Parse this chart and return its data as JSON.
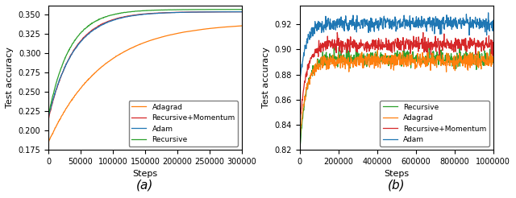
{
  "subplot_a": {
    "xlim": [
      0,
      300000
    ],
    "ylim": [
      0.175,
      0.362
    ],
    "xlabel": "Steps",
    "ylabel": "Test accuracy",
    "label": "(a)",
    "xticks": [
      0,
      50000,
      100000,
      150000,
      200000,
      250000,
      300000
    ],
    "yticks": [
      0.175,
      0.2,
      0.225,
      0.25,
      0.275,
      0.3,
      0.325,
      0.35
    ],
    "legend_loc": "lower right",
    "curves": {
      "Adam": {
        "color": "#1f77b4",
        "v0": 0.218,
        "vf": 0.354,
        "k": 2.5e-05,
        "noise": 0.0005
      },
      "Adagrad": {
        "color": "#ff7f0e",
        "v0": 0.185,
        "vf": 0.34,
        "k": 1.2e-05,
        "noise": 0.0005
      },
      "Recursive": {
        "color": "#2ca02c",
        "v0": 0.22,
        "vf": 0.357,
        "k": 3e-05,
        "noise": 0.0005
      },
      "Recursive+Momentum": {
        "color": "#d62728",
        "v0": 0.215,
        "vf": 0.354,
        "k": 2.6e-05,
        "noise": 0.0005
      }
    }
  },
  "subplot_b": {
    "xlim": [
      0,
      1000000
    ],
    "ylim": [
      0.82,
      0.935
    ],
    "xlabel": "Steps",
    "ylabel": "Test accuracy",
    "label": "(b)",
    "xticks": [
      0,
      200000,
      400000,
      600000,
      800000,
      1000000
    ],
    "xtick_labels": [
      "0",
      "200000",
      "400000",
      "600000",
      "800000",
      "1000000"
    ],
    "yticks": [
      0.82,
      0.84,
      0.86,
      0.88,
      0.9,
      0.92
    ],
    "legend_loc": "lower right",
    "curves": {
      "Adam": {
        "color": "#1f77b4",
        "v0": 0.876,
        "vf": 0.921,
        "k": 3e-05,
        "noise": 0.003
      },
      "Adagrad": {
        "color": "#ff7f0e",
        "v0": 0.828,
        "vf": 0.891,
        "k": 3e-05,
        "noise": 0.003
      },
      "Recursive": {
        "color": "#2ca02c",
        "v0": 0.82,
        "vf": 0.893,
        "k": 3e-05,
        "noise": 0.003
      },
      "Recursive+Momentum": {
        "color": "#d62728",
        "v0": 0.84,
        "vf": 0.904,
        "k": 3e-05,
        "noise": 0.003
      }
    }
  },
  "figsize": [
    6.4,
    2.46
  ],
  "dpi": 100
}
